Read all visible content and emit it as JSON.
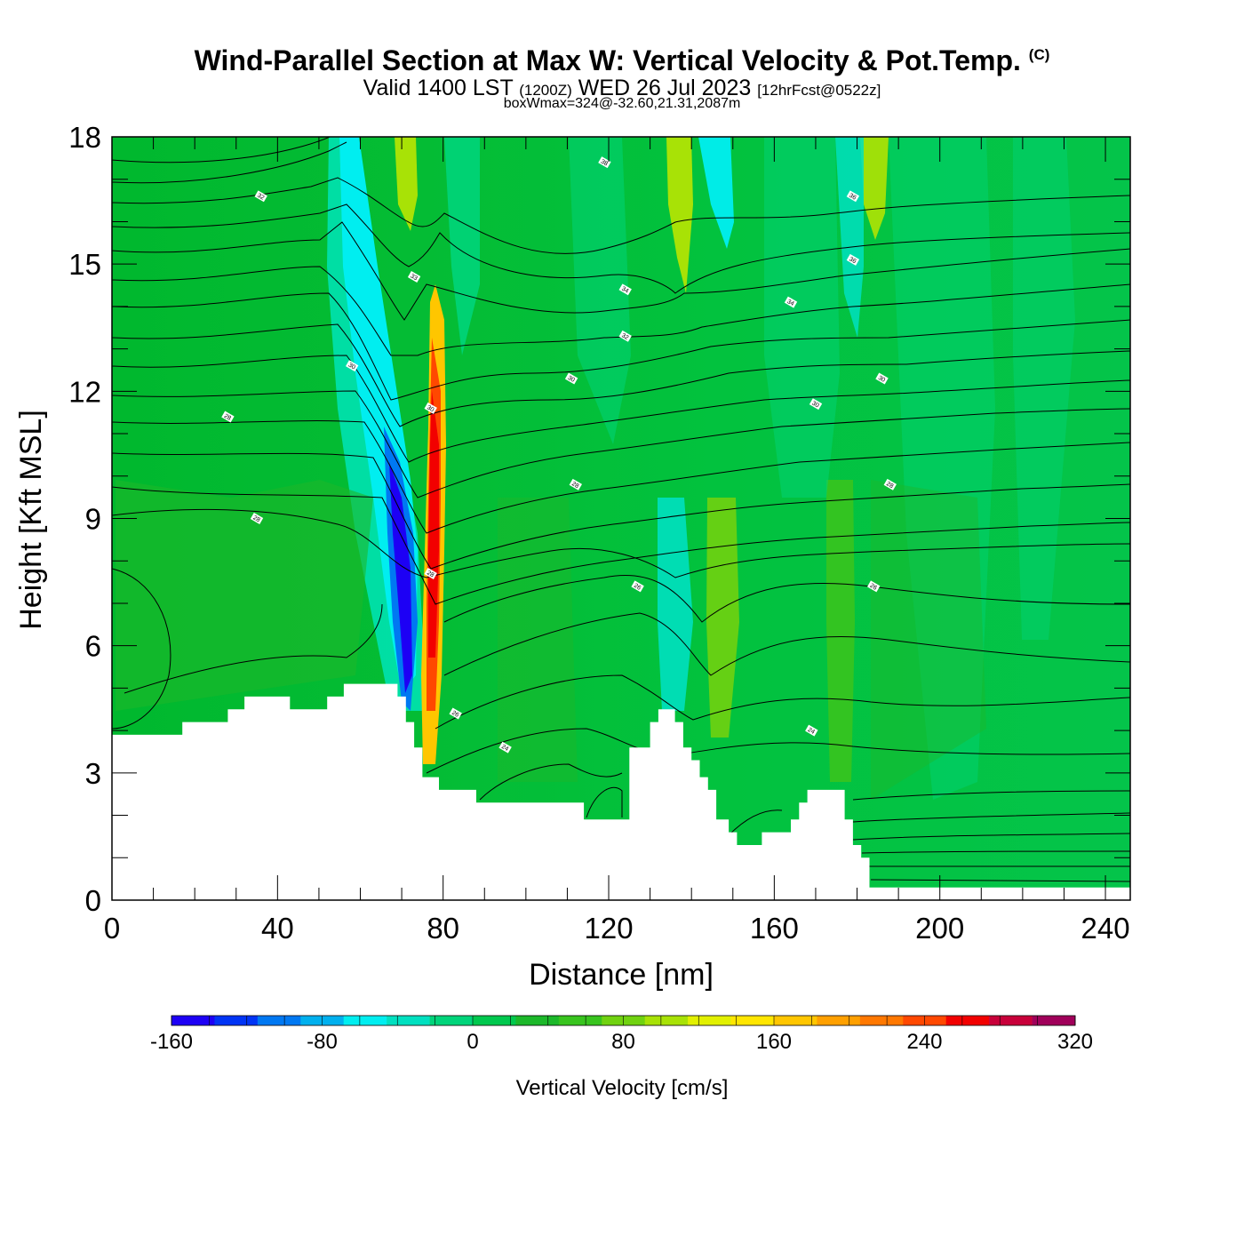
{
  "title": {
    "main": "Wind-Parallel Section at Max W: Vertical Velocity & Pot.Temp.",
    "copyright": "(C)",
    "valid_prefix": "Valid 1400 LST",
    "valid_utc": "(1200Z)",
    "valid_date": "WED 26 Jul 2023",
    "forecast": "[12hrFcst@0522z]",
    "box_info": "boxWmax=324@-32.60,21.31,2087m"
  },
  "chart_data": {
    "type": "heatmap",
    "xlabel": "Distance [nm]",
    "ylabel": "Height [Kft MSL]",
    "xlim": [
      0,
      246
    ],
    "ylim": [
      0,
      18
    ],
    "x_ticks": [
      0,
      40,
      80,
      120,
      160,
      200,
      240
    ],
    "x_tick_labels": [
      "0",
      "40",
      "80",
      "120",
      "160",
      "200",
      "240"
    ],
    "y_ticks": [
      0,
      3,
      6,
      9,
      12,
      15,
      18
    ],
    "y_tick_labels": [
      "0",
      "3",
      "6",
      "9",
      "12",
      "15",
      "18"
    ],
    "colorbar": {
      "title": "Vertical Velocity [cm/s]",
      "min": -160,
      "max": 320,
      "step": 20,
      "tick_labels": [
        "-160",
        "-80",
        "0",
        "80",
        "160",
        "240",
        "320"
      ],
      "tick_values": [
        -160,
        -80,
        0,
        80,
        160,
        240,
        320
      ],
      "colors": [
        "#1d00f5",
        "#0034f5",
        "#0078f2",
        "#00b0ee",
        "#00eef0",
        "#00e0c0",
        "#00d47a",
        "#00c84e",
        "#1cb82a",
        "#38c41e",
        "#70d210",
        "#a8e206",
        "#e2f000",
        "#ffe600",
        "#ffc600",
        "#ffa000",
        "#ff7800",
        "#ff4800",
        "#f20000",
        "#c8003a",
        "#a0005a"
      ]
    },
    "terrain_kft": [
      [
        0,
        3.9
      ],
      [
        17,
        3.9
      ],
      [
        17,
        4.2
      ],
      [
        28,
        4.2
      ],
      [
        28,
        4.5
      ],
      [
        32,
        4.5
      ],
      [
        32,
        4.8
      ],
      [
        43,
        4.8
      ],
      [
        43,
        4.5
      ],
      [
        52,
        4.5
      ],
      [
        52,
        4.8
      ],
      [
        56,
        4.8
      ],
      [
        56,
        5.1
      ],
      [
        69,
        5.1
      ],
      [
        69,
        4.8
      ],
      [
        71,
        4.8
      ],
      [
        71,
        4.2
      ],
      [
        73,
        4.2
      ],
      [
        73,
        3.6
      ],
      [
        75,
        3.6
      ],
      [
        75,
        2.9
      ],
      [
        79,
        2.9
      ],
      [
        79,
        2.6
      ],
      [
        88,
        2.6
      ],
      [
        88,
        2.3
      ],
      [
        114,
        2.3
      ],
      [
        114,
        1.9
      ],
      [
        125,
        1.9
      ],
      [
        125,
        3.6
      ],
      [
        130,
        3.6
      ],
      [
        130,
        4.2
      ],
      [
        132,
        4.2
      ],
      [
        132,
        4.5
      ],
      [
        136,
        4.5
      ],
      [
        136,
        4.2
      ],
      [
        138,
        4.2
      ],
      [
        138,
        3.6
      ],
      [
        140,
        3.6
      ],
      [
        140,
        3.3
      ],
      [
        142,
        3.3
      ],
      [
        142,
        2.9
      ],
      [
        144,
        2.9
      ],
      [
        144,
        2.6
      ],
      [
        146,
        2.6
      ],
      [
        146,
        1.9
      ],
      [
        149,
        1.9
      ],
      [
        149,
        1.6
      ],
      [
        151,
        1.6
      ],
      [
        151,
        1.3
      ],
      [
        157,
        1.3
      ],
      [
        157,
        1.6
      ],
      [
        164,
        1.6
      ],
      [
        164,
        1.9
      ],
      [
        166,
        1.9
      ],
      [
        166,
        2.3
      ],
      [
        168,
        2.3
      ],
      [
        168,
        2.6
      ],
      [
        177,
        2.6
      ],
      [
        177,
        1.9
      ],
      [
        179,
        1.9
      ],
      [
        179,
        1.3
      ],
      [
        181,
        1.3
      ],
      [
        181,
        1.0
      ],
      [
        183,
        1.0
      ],
      [
        183,
        0.3
      ],
      [
        246,
        0.3
      ]
    ],
    "isentrope_labels": [
      {
        "text": "38",
        "x": 119,
        "y": 17.4
      },
      {
        "text": "36",
        "x": 179,
        "y": 16.6
      },
      {
        "text": "32",
        "x": 36,
        "y": 16.6
      },
      {
        "text": "36",
        "x": 179,
        "y": 15.1
      },
      {
        "text": "33",
        "x": 73,
        "y": 14.7
      },
      {
        "text": "34",
        "x": 124,
        "y": 14.4
      },
      {
        "text": "34",
        "x": 164,
        "y": 14.1
      },
      {
        "text": "32",
        "x": 124,
        "y": 13.3
      },
      {
        "text": "30",
        "x": 58,
        "y": 12.6
      },
      {
        "text": "30",
        "x": 111,
        "y": 12.3
      },
      {
        "text": "30",
        "x": 186,
        "y": 12.3
      },
      {
        "text": "30",
        "x": 170,
        "y": 11.7
      },
      {
        "text": "30",
        "x": 77,
        "y": 11.6
      },
      {
        "text": "28",
        "x": 28,
        "y": 11.4
      },
      {
        "text": "28",
        "x": 112,
        "y": 9.8
      },
      {
        "text": "28",
        "x": 188,
        "y": 9.8
      },
      {
        "text": "28",
        "x": 35,
        "y": 9.0
      },
      {
        "text": "28",
        "x": 77,
        "y": 7.7
      },
      {
        "text": "26",
        "x": 127,
        "y": 7.4
      },
      {
        "text": "26",
        "x": 184,
        "y": 7.4
      },
      {
        "text": "26",
        "x": 83,
        "y": 4.4
      },
      {
        "text": "24",
        "x": 169,
        "y": 4.0
      },
      {
        "text": "24",
        "x": 95,
        "y": 3.6
      }
    ]
  }
}
